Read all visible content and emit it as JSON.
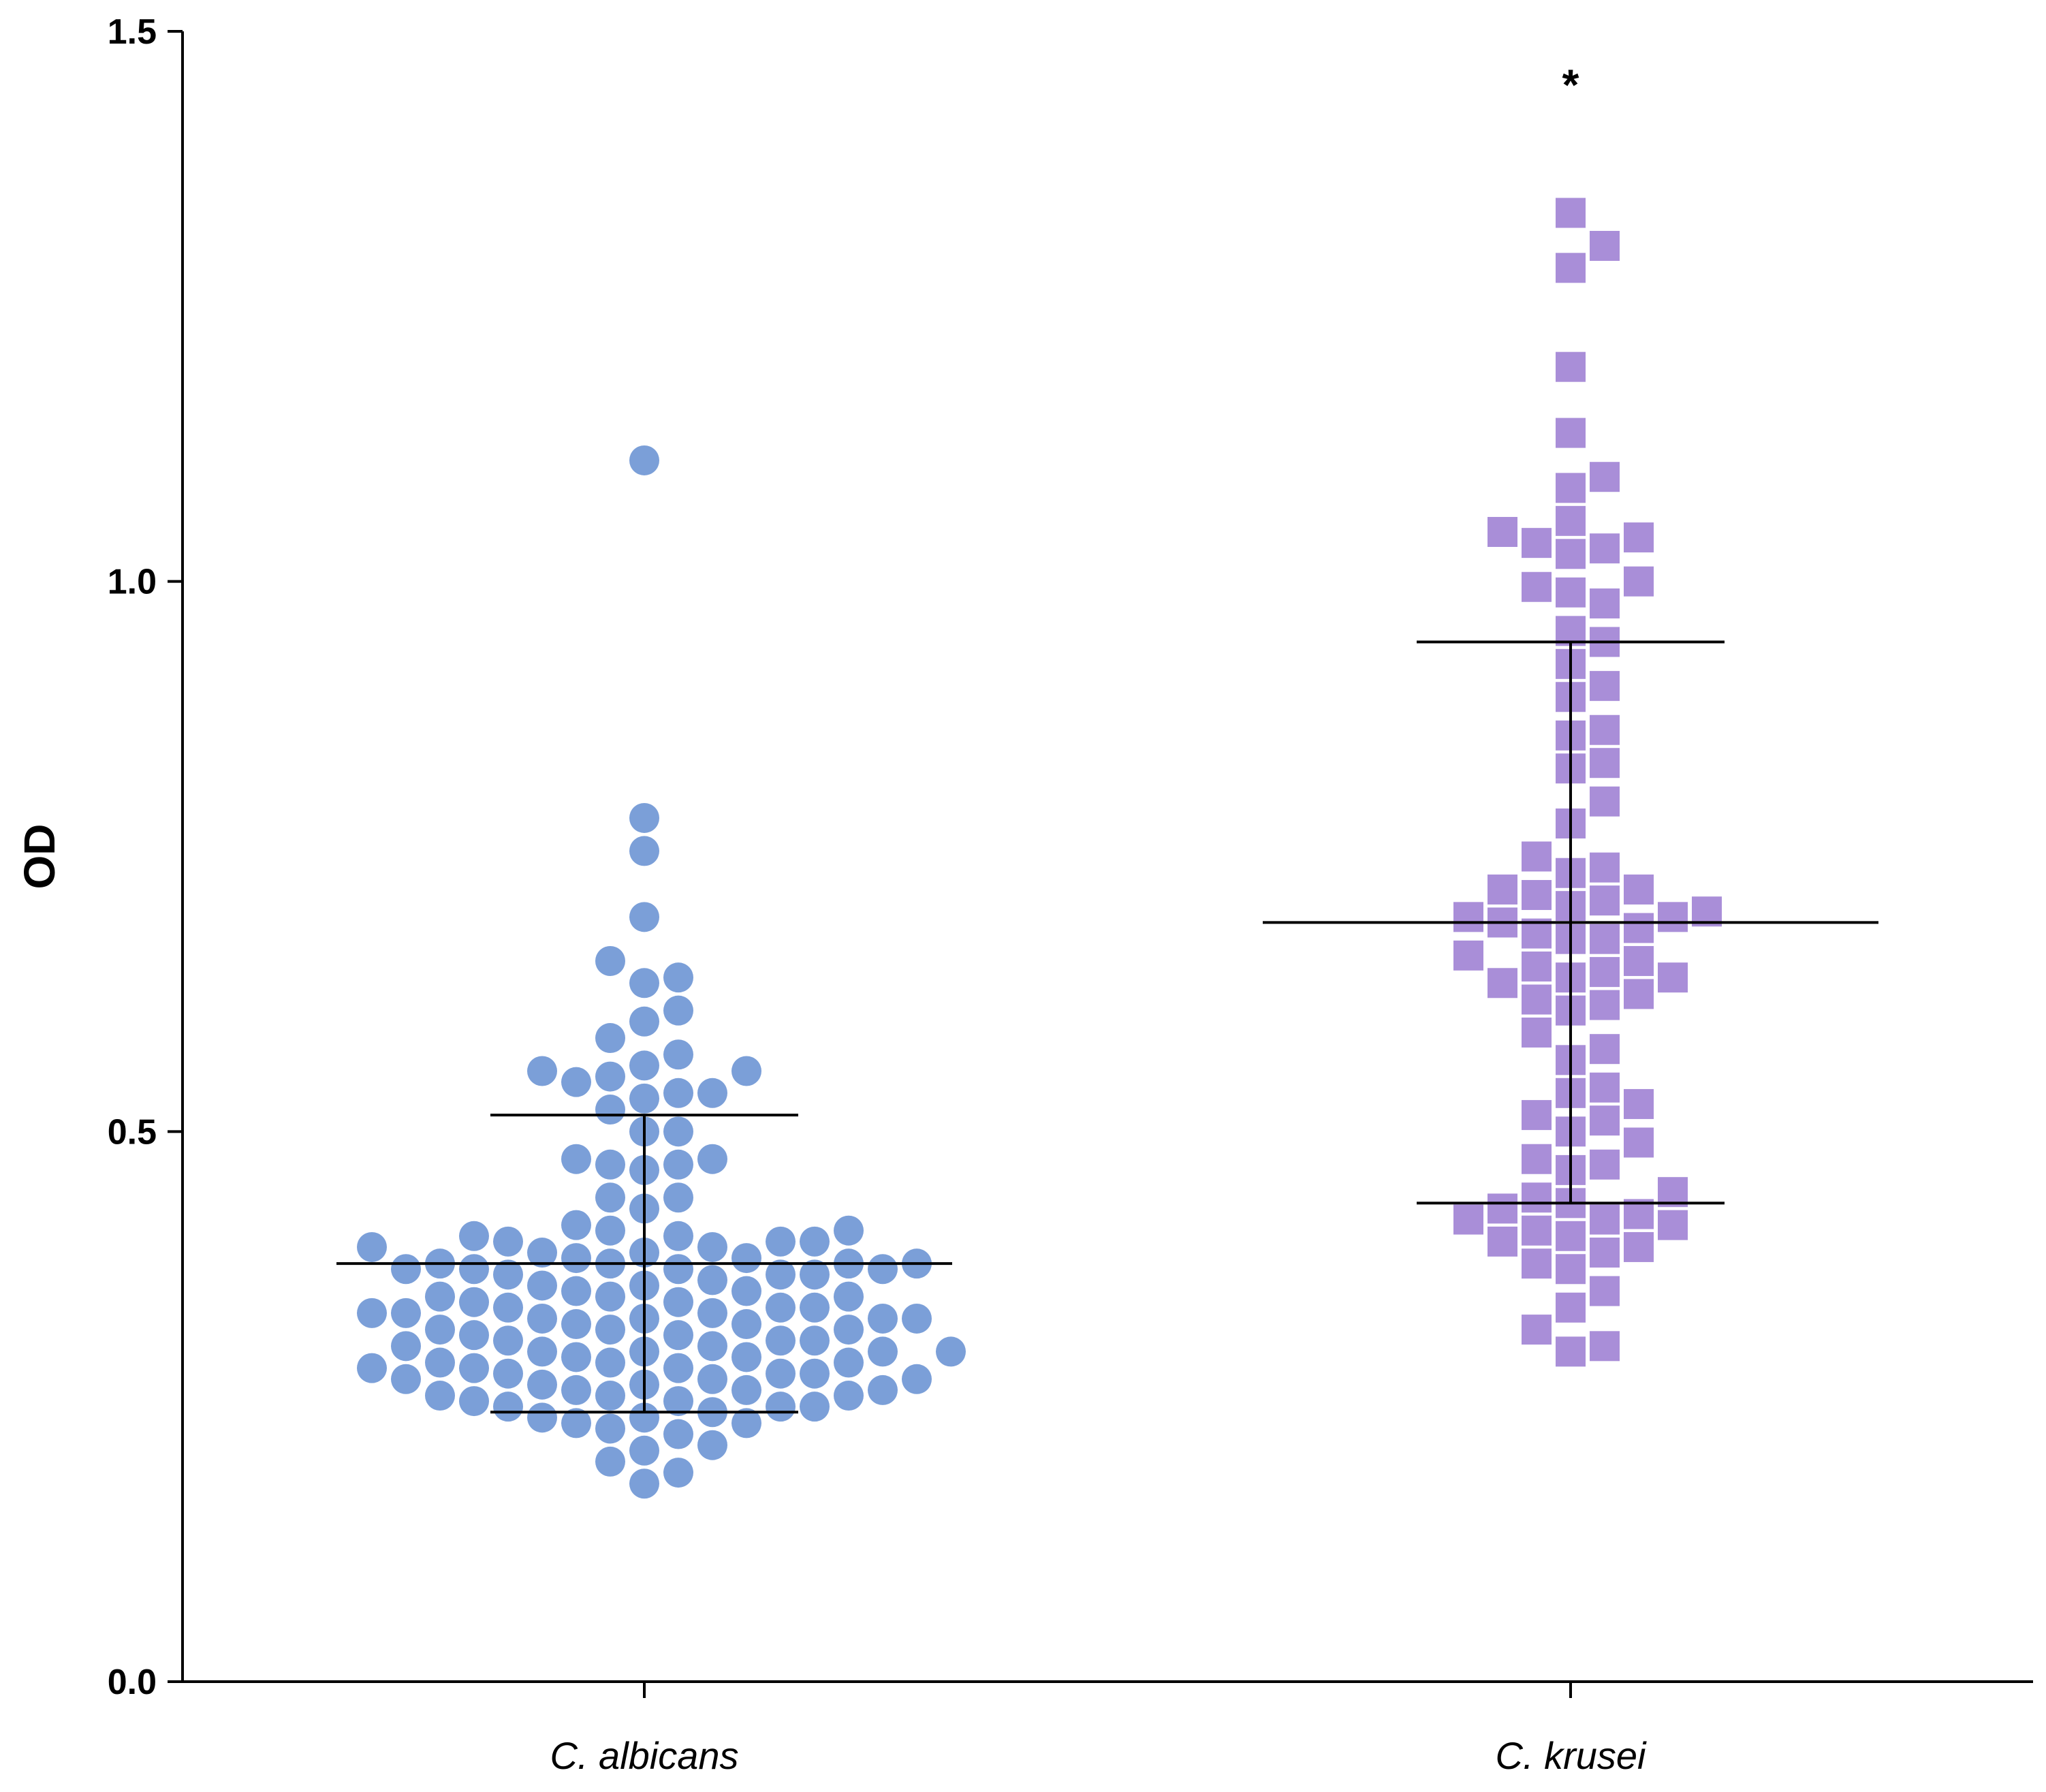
{
  "chart_data": {
    "type": "scatter",
    "subtype": "dot-plot",
    "title": "",
    "xlabel": "",
    "ylabel": "OD",
    "ylim": [
      0,
      1.5
    ],
    "yticks": [
      "0.0",
      "0.5",
      "1.0",
      "1.5"
    ],
    "grid": false,
    "categories": [
      "C. albicans",
      "C. krusei"
    ],
    "series": [
      {
        "name": "C. albicans",
        "marker": "circle",
        "color": "#7b9fd8",
        "mean": 0.38,
        "sd_low": 0.245,
        "sd_high": 0.515,
        "values": [
          1.11,
          0.785,
          0.755,
          0.695,
          0.655,
          0.64,
          0.635,
          0.61,
          0.6,
          0.585,
          0.57,
          0.56,
          0.555,
          0.555,
          0.55,
          0.545,
          0.535,
          0.535,
          0.53,
          0.52,
          0.5,
          0.5,
          0.475,
          0.475,
          0.47,
          0.47,
          0.465,
          0.44,
          0.44,
          0.43,
          0.415,
          0.41,
          0.41,
          0.405,
          0.405,
          0.4,
          0.4,
          0.4,
          0.395,
          0.395,
          0.39,
          0.39,
          0.385,
          0.385,
          0.38,
          0.38,
          0.38,
          0.38,
          0.375,
          0.375,
          0.375,
          0.375,
          0.37,
          0.37,
          0.37,
          0.365,
          0.36,
          0.36,
          0.355,
          0.355,
          0.35,
          0.35,
          0.35,
          0.345,
          0.345,
          0.34,
          0.34,
          0.34,
          0.335,
          0.335,
          0.335,
          0.33,
          0.33,
          0.33,
          0.33,
          0.325,
          0.325,
          0.32,
          0.32,
          0.32,
          0.315,
          0.315,
          0.31,
          0.31,
          0.31,
          0.305,
          0.305,
          0.3,
          0.3,
          0.3,
          0.3,
          0.295,
          0.295,
          0.29,
          0.29,
          0.29,
          0.285,
          0.285,
          0.285,
          0.28,
          0.28,
          0.28,
          0.275,
          0.275,
          0.275,
          0.27,
          0.27,
          0.265,
          0.265,
          0.265,
          0.26,
          0.26,
          0.26,
          0.255,
          0.255,
          0.25,
          0.25,
          0.25,
          0.245,
          0.24,
          0.24,
          0.235,
          0.235,
          0.23,
          0.225,
          0.215,
          0.21,
          0.2,
          0.19,
          0.18
        ]
      },
      {
        "name": "C. krusei",
        "marker": "square",
        "color": "#a98ed8",
        "mean": 0.69,
        "sd_low": 0.435,
        "sd_high": 0.945,
        "values": [
          1.335,
          1.305,
          1.285,
          1.195,
          1.135,
          1.095,
          1.085,
          1.055,
          1.045,
          1.04,
          1.035,
          1.03,
          1.025,
          1.0,
          0.995,
          0.99,
          0.98,
          0.955,
          0.945,
          0.925,
          0.905,
          0.895,
          0.865,
          0.86,
          0.835,
          0.83,
          0.8,
          0.78,
          0.75,
          0.74,
          0.735,
          0.72,
          0.72,
          0.715,
          0.71,
          0.705,
          0.7,
          0.695,
          0.695,
          0.69,
          0.685,
          0.68,
          0.675,
          0.675,
          0.66,
          0.655,
          0.65,
          0.645,
          0.64,
          0.64,
          0.635,
          0.625,
          0.62,
          0.615,
          0.61,
          0.59,
          0.575,
          0.565,
          0.54,
          0.535,
          0.525,
          0.515,
          0.51,
          0.5,
          0.49,
          0.475,
          0.47,
          0.465,
          0.445,
          0.44,
          0.435,
          0.43,
          0.425,
          0.42,
          0.42,
          0.415,
          0.41,
          0.405,
          0.4,
          0.395,
          0.39,
          0.38,
          0.375,
          0.355,
          0.34,
          0.32,
          0.305,
          0.3
        ]
      }
    ],
    "annotations": [
      {
        "text": "*",
        "category": "C. krusei",
        "y": 1.46
      }
    ]
  }
}
